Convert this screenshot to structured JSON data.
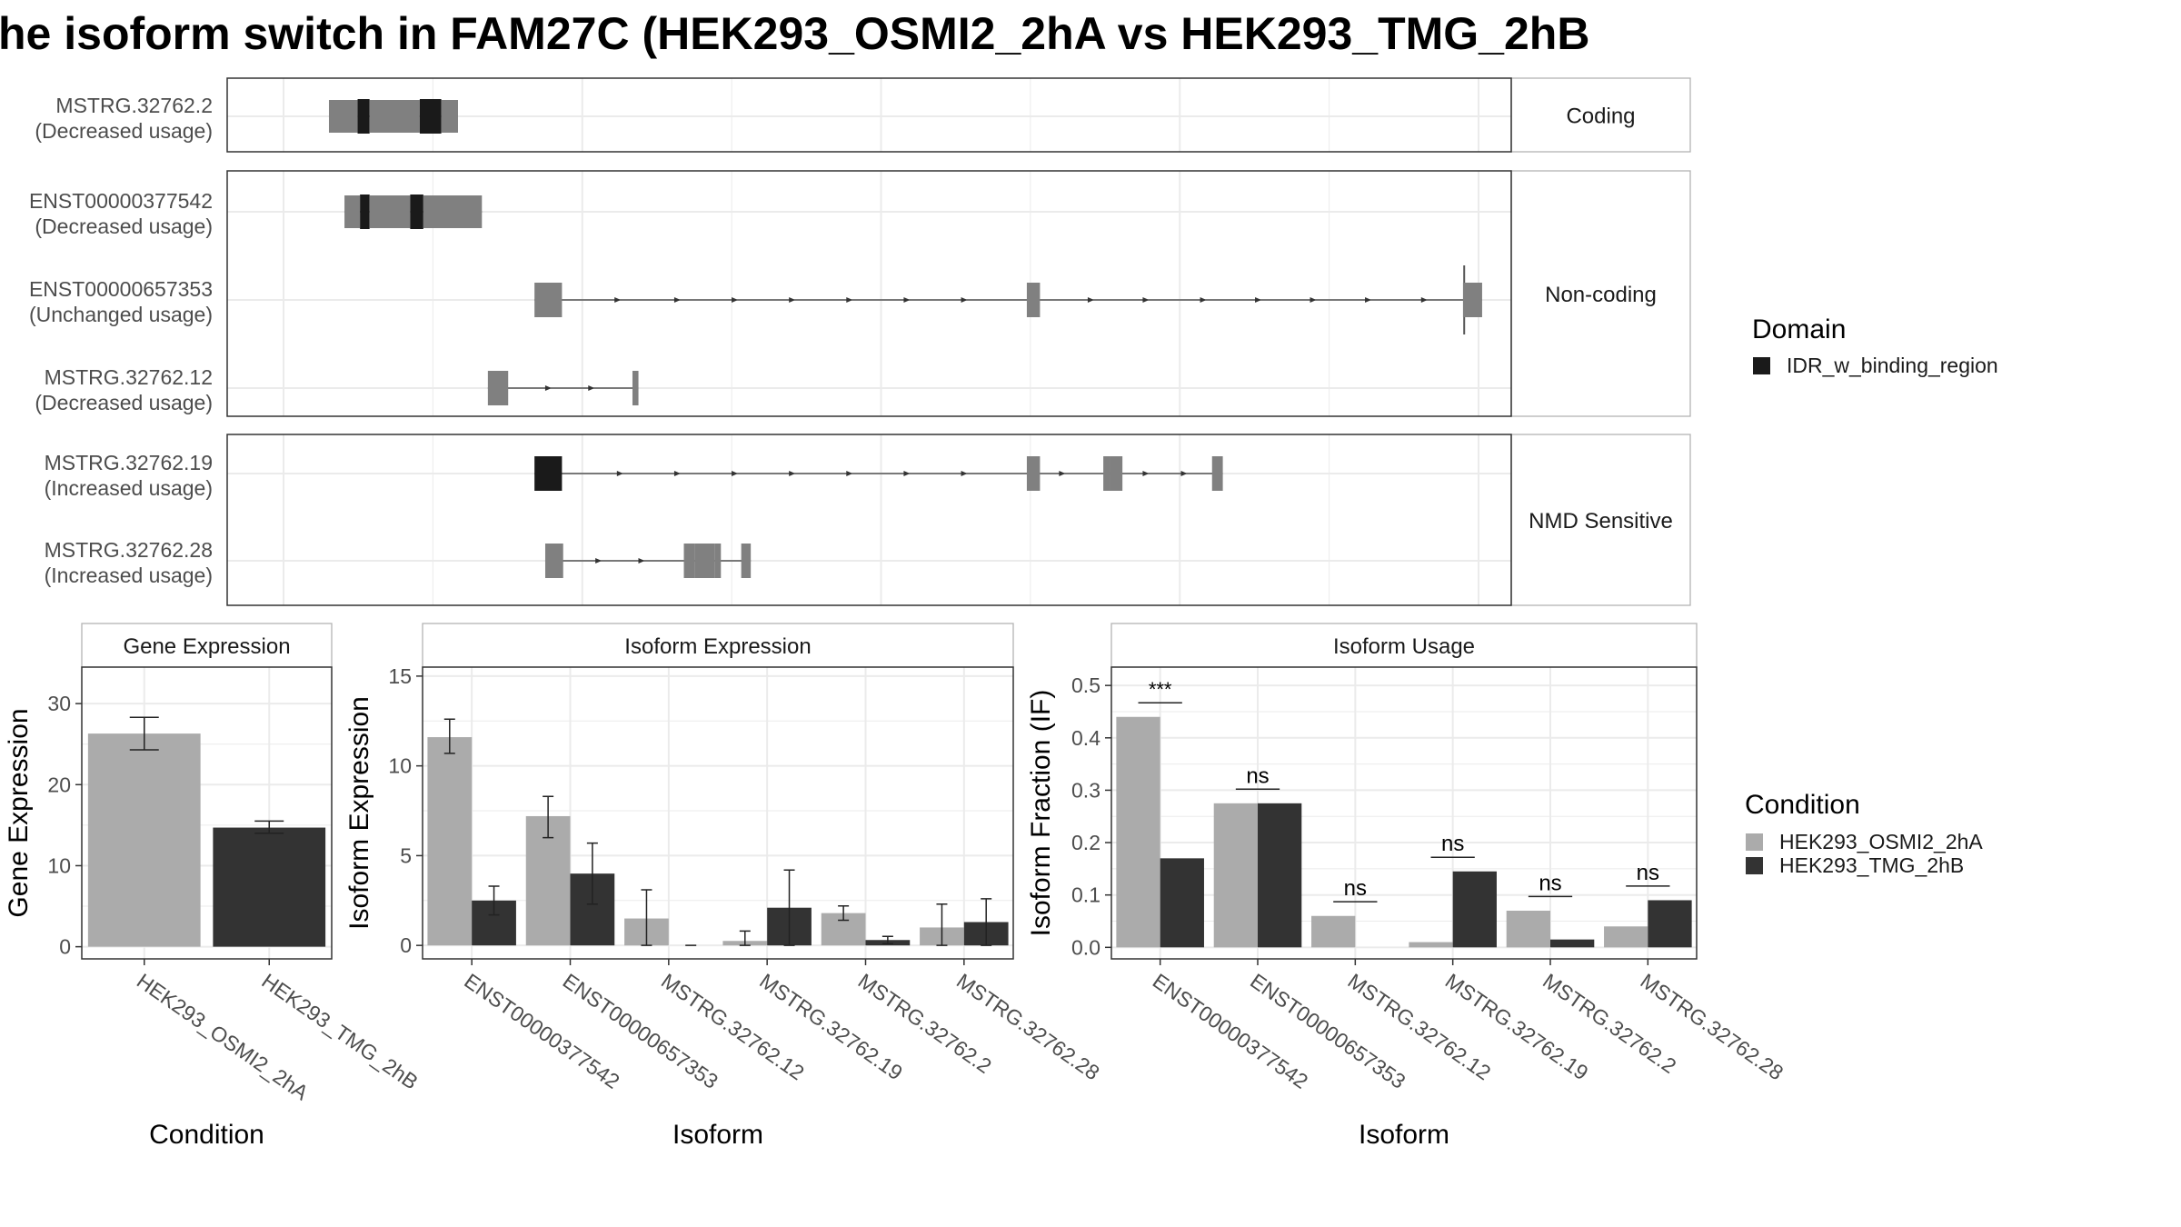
{
  "title": "he isoform switch in FAM27C (HEK293_OSMI2_2hA vs HEK293_TMG_2hB",
  "colors": {
    "cond_a": "#ababab",
    "cond_b": "#333333",
    "exon": "#808080",
    "domain": "#1a1a1a",
    "grid": "#ebebeb",
    "strip_border": "#b3b3b3"
  },
  "structure": {
    "x_range": [
      0,
      1000
    ],
    "panels": [
      {
        "label": "Coding",
        "tracks": [
          {
            "name": "MSTRG.32762.2",
            "usage": "(Decreased usage)",
            "exons": [
              [
                38,
                62,
                "utr"
              ],
              [
                62,
                72,
                "domain"
              ],
              [
                72,
                114,
                "utr"
              ],
              [
                114,
                132,
                "domain"
              ],
              [
                132,
                146,
                "utr"
              ]
            ],
            "arrows": []
          }
        ]
      },
      {
        "label": "Non-coding",
        "tracks": [
          {
            "name": "ENST00000377542",
            "usage": "(Decreased usage)",
            "exons": [
              [
                51,
                64,
                "utr"
              ],
              [
                64,
                72,
                "domain"
              ],
              [
                72,
                106,
                "utr"
              ],
              [
                106,
                117,
                "domain"
              ],
              [
                117,
                166,
                "utr"
              ]
            ],
            "arrows": []
          },
          {
            "name": "ENST00000657353",
            "usage": "(Unchanged usage)",
            "exons": [
              [
                210,
                233,
                "nc"
              ],
              [
                622,
                633,
                "nc"
              ],
              [
                987,
                1003,
                "nc"
              ]
            ],
            "arrows": [
              280,
              330,
              378,
              426,
              474,
              522,
              570,
              676,
              722,
              770,
              816,
              862,
              908,
              955
            ],
            "tick": 988
          },
          {
            "name": "MSTRG.32762.12",
            "usage": "(Decreased usage)",
            "exons": [
              [
                171,
                188,
                "nc"
              ],
              [
                292,
                297,
                "nc"
              ]
            ],
            "arrows": [
              222,
              258
            ]
          }
        ]
      },
      {
        "label": "NMD Sensitive",
        "tracks": [
          {
            "name": "MSTRG.32762.19",
            "usage": "(Increased usage)",
            "exons": [
              [
                210,
                233,
                "domain"
              ],
              [
                622,
                633,
                "cds"
              ],
              [
                686,
                692,
                "cds"
              ],
              [
                692,
                702,
                "cds"
              ],
              [
                777,
                786,
                "cds"
              ]
            ],
            "arrows": [
              282,
              330,
              378,
              426,
              474,
              522,
              570,
              652,
              722,
              754
            ]
          },
          {
            "name": "MSTRG.32762.28",
            "usage": "(Increased usage)",
            "exons": [
              [
                219,
                234,
                "cds"
              ],
              [
                335,
                344,
                "cds"
              ],
              [
                344,
                361,
                "cds"
              ],
              [
                361,
                366,
                "cds"
              ],
              [
                383,
                391,
                "cds"
              ]
            ],
            "arrows": [
              264,
              300
            ]
          }
        ]
      }
    ]
  },
  "legends": {
    "domain_title": "Domain",
    "domain_items": [
      "IDR_w_binding_region"
    ],
    "condition_title": "Condition",
    "condition_items": [
      "HEK293_OSMI2_2hA",
      "HEK293_TMG_2hB"
    ]
  },
  "chart_data": [
    {
      "type": "bar",
      "title": "Gene Expression",
      "xlabel": "Condition",
      "ylabel": "Gene Expression",
      "categories": [
        "HEK293_OSMI2_2hA",
        "HEK293_TMG_2hB"
      ],
      "values": [
        26.3,
        14.7
      ],
      "errors": [
        [
          24.3,
          28.3
        ],
        [
          14.0,
          15.5
        ]
      ],
      "ylim": [
        -1.5,
        34.5
      ],
      "yticks": [
        0,
        10,
        20,
        30
      ],
      "grid": true
    },
    {
      "type": "bar",
      "title": "Isoform Expression",
      "xlabel": "Isoform",
      "ylabel": "Isoform Expression",
      "categories": [
        "ENST00000377542",
        "ENST00000657353",
        "MSTRG.32762.12",
        "MSTRG.32762.19",
        "MSTRG.32762.2",
        "MSTRG.32762.28"
      ],
      "series": [
        {
          "name": "HEK293_OSMI2_2hA",
          "values": [
            11.6,
            7.2,
            1.5,
            0.25,
            1.8,
            1.0
          ],
          "errors": [
            [
              10.7,
              12.6
            ],
            [
              6.0,
              8.3
            ],
            [
              0,
              3.1
            ],
            [
              0,
              0.8
            ],
            [
              1.4,
              2.2
            ],
            [
              0,
              2.3
            ]
          ]
        },
        {
          "name": "HEK293_TMG_2hB",
          "values": [
            2.5,
            4.0,
            0,
            2.1,
            0.3,
            1.3
          ],
          "errors": [
            [
              1.7,
              3.3
            ],
            [
              2.3,
              5.7
            ],
            [
              0,
              0
            ],
            [
              0,
              4.2
            ],
            [
              0.1,
              0.5
            ],
            [
              0,
              2.6
            ]
          ]
        }
      ],
      "ylim": [
        -0.75,
        15.5
      ],
      "yticks": [
        0,
        5,
        10,
        15
      ],
      "grid": true
    },
    {
      "type": "bar",
      "title": "Isoform Usage",
      "xlabel": "Isoform",
      "ylabel": "Isoform Fraction (IF)",
      "categories": [
        "ENST00000377542",
        "ENST00000657353",
        "MSTRG.32762.12",
        "MSTRG.32762.19",
        "MSTRG.32762.2",
        "MSTRG.32762.28"
      ],
      "series": [
        {
          "name": "HEK293_OSMI2_2hA",
          "values": [
            0.44,
            0.275,
            0.06,
            0.01,
            0.07,
            0.04
          ]
        },
        {
          "name": "HEK293_TMG_2hB",
          "values": [
            0.17,
            0.275,
            0,
            0.145,
            0.015,
            0.09
          ]
        }
      ],
      "significance": [
        {
          "label": "***",
          "y": 0.467
        },
        {
          "label": "ns",
          "y": 0.302
        },
        {
          "label": "ns",
          "y": 0.087
        },
        {
          "label": "ns",
          "y": 0.172
        },
        {
          "label": "ns",
          "y": 0.097
        },
        {
          "label": "ns",
          "y": 0.117
        }
      ],
      "ylim": [
        -0.022,
        0.535
      ],
      "yticks": [
        0.0,
        0.1,
        0.2,
        0.3,
        0.4,
        0.5
      ],
      "ytick_labels": [
        "0.0",
        "0.1",
        "0.2",
        "0.3",
        "0.4",
        "0.5"
      ],
      "grid": true
    }
  ]
}
